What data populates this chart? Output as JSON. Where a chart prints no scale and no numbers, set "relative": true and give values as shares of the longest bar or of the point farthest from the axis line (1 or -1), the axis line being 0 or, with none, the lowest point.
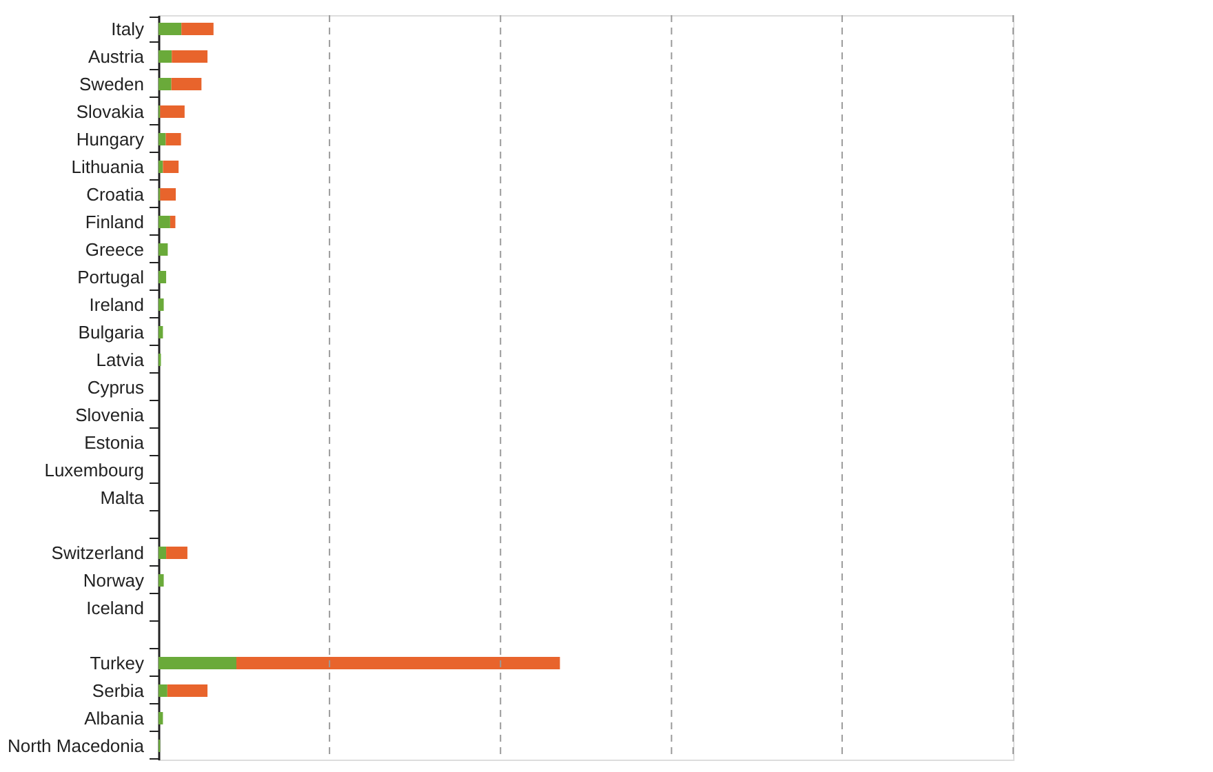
{
  "chart_data": {
    "type": "bar",
    "orientation": "horizontal",
    "stacked": true,
    "relative": true,
    "ref_lines": [
      {
        "axis": "x",
        "value": 0.426,
        "line_style": "dashed"
      },
      {
        "axis": "x",
        "value": 0.852,
        "line_style": "dashed"
      },
      {
        "axis": "x",
        "value": 1.278,
        "line_style": "dashed"
      },
      {
        "axis": "x",
        "value": 1.703,
        "line_style": "dashed"
      },
      {
        "axis": "x",
        "value": 2.129,
        "line_style": "dashed"
      }
    ],
    "categories": [
      "Italy",
      "Austria",
      "Sweden",
      "Slovakia",
      "Hungary",
      "Lithuania",
      "Croatia",
      "Finland",
      "Greece",
      "Portugal",
      "Ireland",
      "Bulgaria",
      "Latvia",
      "Cyprus",
      "Slovenia",
      "Estonia",
      "Luxembourg",
      "Malta",
      null,
      "Switzerland",
      "Norway",
      "Iceland",
      null,
      "Turkey",
      "Serbia",
      "Albania",
      "North Macedonia"
    ],
    "series": [
      {
        "color": "#6aaa3a",
        "values": [
          0.057,
          0.033,
          0.032,
          0.004,
          0.018,
          0.011,
          0.004,
          0.029,
          0.023,
          0.019,
          0.013,
          0.011,
          0.006,
          0,
          0,
          0,
          0,
          0,
          null,
          0.019,
          0.013,
          0,
          null,
          0.194,
          0.022,
          0.011,
          0.004
        ]
      },
      {
        "color": "#e8642c",
        "values": [
          0.08,
          0.089,
          0.075,
          0.061,
          0.038,
          0.039,
          0.039,
          0.013,
          0,
          0,
          0,
          0,
          0,
          0,
          0,
          0,
          0,
          0,
          null,
          0.053,
          0,
          0,
          null,
          0.806,
          0.1,
          0,
          0
        ]
      }
    ]
  }
}
